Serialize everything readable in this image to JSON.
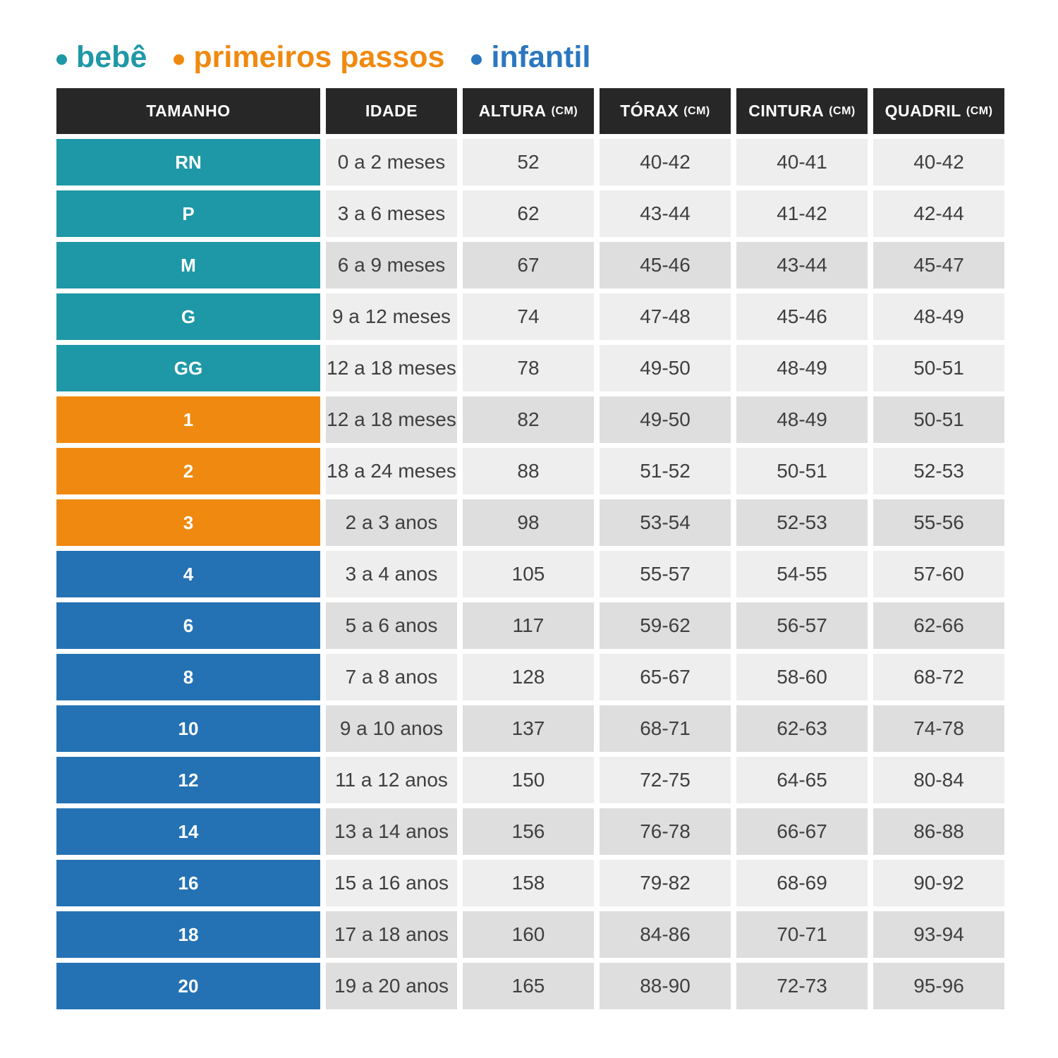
{
  "legend": {
    "items": [
      {
        "id": "bebe",
        "label": "bebê",
        "color": "#1e98a6"
      },
      {
        "id": "primeiros_passos",
        "label": "primeiros passos",
        "color": "#f0890f"
      },
      {
        "id": "infantil",
        "label": "infantil",
        "color": "#2b77bf"
      }
    ]
  },
  "table": {
    "header_bg": "#272727",
    "header_text_color": "#ffffff",
    "cell_text_color": "#3f3f3f",
    "row_shades": {
      "light": "#eeeeee",
      "dark": "#dedede"
    },
    "group_colors": {
      "bebe": "#1e98a6",
      "primeiros_passos": "#f0890f",
      "infantil": "#2472b4"
    },
    "columns": [
      {
        "label": "TAMANHO",
        "unit": ""
      },
      {
        "label": "IDADE",
        "unit": ""
      },
      {
        "label": "ALTURA",
        "unit": "(CM)"
      },
      {
        "label": "TÓRAX",
        "unit": "(CM)"
      },
      {
        "label": "CINTURA",
        "unit": "(CM)"
      },
      {
        "label": "QUADRIL",
        "unit": "(CM)"
      }
    ],
    "rows": [
      {
        "size": "RN",
        "group": "bebe",
        "shade": "light",
        "idade": "0 a 2 meses",
        "altura": "52",
        "torax": "40-42",
        "cintura": "40-41",
        "quadril": "40-42"
      },
      {
        "size": "P",
        "group": "bebe",
        "shade": "light",
        "idade": "3 a 6 meses",
        "altura": "62",
        "torax": "43-44",
        "cintura": "41-42",
        "quadril": "42-44"
      },
      {
        "size": "M",
        "group": "bebe",
        "shade": "dark",
        "idade": "6 a 9 meses",
        "altura": "67",
        "torax": "45-46",
        "cintura": "43-44",
        "quadril": "45-47"
      },
      {
        "size": "G",
        "group": "bebe",
        "shade": "light",
        "idade": "9 a 12 meses",
        "altura": "74",
        "torax": "47-48",
        "cintura": "45-46",
        "quadril": "48-49"
      },
      {
        "size": "GG",
        "group": "bebe",
        "shade": "light",
        "idade": "12 a 18 meses",
        "altura": "78",
        "torax": "49-50",
        "cintura": "48-49",
        "quadril": "50-51"
      },
      {
        "size": "1",
        "group": "primeiros_passos",
        "shade": "dark",
        "idade": "12 a 18 meses",
        "altura": "82",
        "torax": "49-50",
        "cintura": "48-49",
        "quadril": "50-51"
      },
      {
        "size": "2",
        "group": "primeiros_passos",
        "shade": "light",
        "idade": "18 a 24 meses",
        "altura": "88",
        "torax": "51-52",
        "cintura": "50-51",
        "quadril": "52-53"
      },
      {
        "size": "3",
        "group": "primeiros_passos",
        "shade": "dark",
        "idade": "2 a 3 anos",
        "altura": "98",
        "torax": "53-54",
        "cintura": "52-53",
        "quadril": "55-56"
      },
      {
        "size": "4",
        "group": "infantil",
        "shade": "light",
        "idade": "3 a 4 anos",
        "altura": "105",
        "torax": "55-57",
        "cintura": "54-55",
        "quadril": "57-60"
      },
      {
        "size": "6",
        "group": "infantil",
        "shade": "dark",
        "idade": "5 a 6 anos",
        "altura": "117",
        "torax": "59-62",
        "cintura": "56-57",
        "quadril": "62-66"
      },
      {
        "size": "8",
        "group": "infantil",
        "shade": "light",
        "idade": "7 a 8 anos",
        "altura": "128",
        "torax": "65-67",
        "cintura": "58-60",
        "quadril": "68-72"
      },
      {
        "size": "10",
        "group": "infantil",
        "shade": "dark",
        "idade": "9 a 10 anos",
        "altura": "137",
        "torax": "68-71",
        "cintura": "62-63",
        "quadril": "74-78"
      },
      {
        "size": "12",
        "group": "infantil",
        "shade": "light",
        "idade": "11 a 12 anos",
        "altura": "150",
        "torax": "72-75",
        "cintura": "64-65",
        "quadril": "80-84"
      },
      {
        "size": "14",
        "group": "infantil",
        "shade": "dark",
        "idade": "13 a 14 anos",
        "altura": "156",
        "torax": "76-78",
        "cintura": "66-67",
        "quadril": "86-88"
      },
      {
        "size": "16",
        "group": "infantil",
        "shade": "light",
        "idade": "15 a 16 anos",
        "altura": "158",
        "torax": "79-82",
        "cintura": "68-69",
        "quadril": "90-92"
      },
      {
        "size": "18",
        "group": "infantil",
        "shade": "dark",
        "idade": "17 a 18 anos",
        "altura": "160",
        "torax": "84-86",
        "cintura": "70-71",
        "quadril": "93-94"
      },
      {
        "size": "20",
        "group": "infantil",
        "shade": "dark",
        "idade": "19 a 20 anos",
        "altura": "165",
        "torax": "88-90",
        "cintura": "72-73",
        "quadril": "95-96"
      }
    ]
  },
  "chart_data": {
    "type": "table",
    "title": "",
    "legend_entries": [
      "bebê",
      "primeiros passos",
      "infantil"
    ],
    "columns": [
      "TAMANHO",
      "IDADE",
      "ALTURA (CM)",
      "TÓRAX (CM)",
      "CINTURA (CM)",
      "QUADRIL (CM)"
    ],
    "rows": [
      [
        "RN",
        "0 a 2 meses",
        "52",
        "40-42",
        "40-41",
        "40-42"
      ],
      [
        "P",
        "3 a 6 meses",
        "62",
        "43-44",
        "41-42",
        "42-44"
      ],
      [
        "M",
        "6 a 9 meses",
        "67",
        "45-46",
        "43-44",
        "45-47"
      ],
      [
        "G",
        "9 a 12 meses",
        "74",
        "47-48",
        "45-46",
        "48-49"
      ],
      [
        "GG",
        "12 a 18 meses",
        "78",
        "49-50",
        "48-49",
        "50-51"
      ],
      [
        "1",
        "12 a 18 meses",
        "82",
        "49-50",
        "48-49",
        "50-51"
      ],
      [
        "2",
        "18 a 24 meses",
        "88",
        "51-52",
        "50-51",
        "52-53"
      ],
      [
        "3",
        "2 a 3 anos",
        "98",
        "53-54",
        "52-53",
        "55-56"
      ],
      [
        "4",
        "3 a 4 anos",
        "105",
        "55-57",
        "54-55",
        "57-60"
      ],
      [
        "6",
        "5 a 6 anos",
        "117",
        "59-62",
        "56-57",
        "62-66"
      ],
      [
        "8",
        "7 a 8 anos",
        "128",
        "65-67",
        "58-60",
        "68-72"
      ],
      [
        "10",
        "9 a 10 anos",
        "137",
        "68-71",
        "62-63",
        "74-78"
      ],
      [
        "12",
        "11 a 12 anos",
        "150",
        "72-75",
        "64-65",
        "80-84"
      ],
      [
        "14",
        "13 a 14 anos",
        "156",
        "76-78",
        "66-67",
        "86-88"
      ],
      [
        "16",
        "15 a 16 anos",
        "158",
        "79-82",
        "68-69",
        "90-92"
      ],
      [
        "18",
        "17 a 18 anos",
        "160",
        "84-86",
        "70-71",
        "93-94"
      ],
      [
        "20",
        "19 a 20 anos",
        "165",
        "88-90",
        "72-73",
        "95-96"
      ]
    ],
    "row_groups": [
      "bebê",
      "bebê",
      "bebê",
      "bebê",
      "bebê",
      "primeiros passos",
      "primeiros passos",
      "primeiros passos",
      "infantil",
      "infantil",
      "infantil",
      "infantil",
      "infantil",
      "infantil",
      "infantil",
      "infantil",
      "infantil"
    ]
  }
}
